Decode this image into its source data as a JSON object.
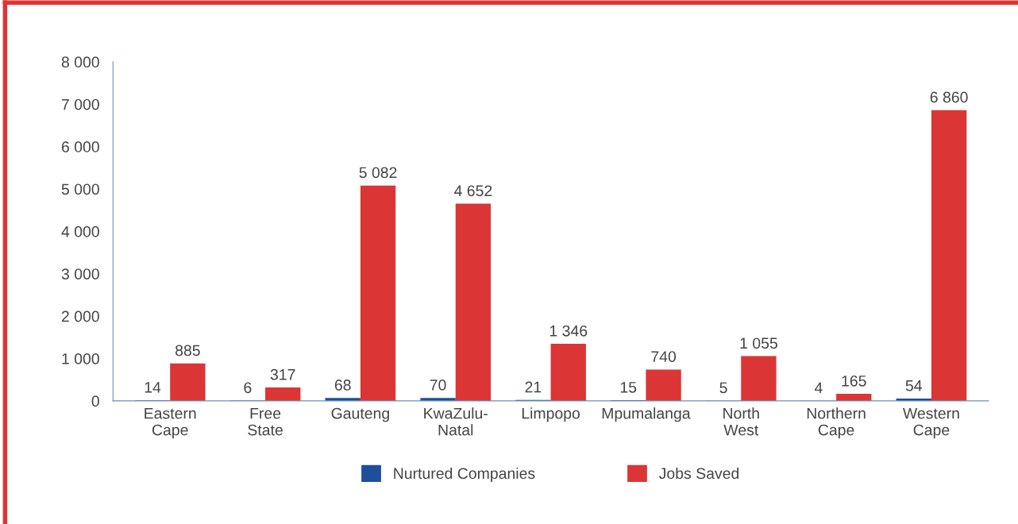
{
  "chart_data": {
    "type": "bar",
    "categories": [
      "Eastern\nCape",
      "Free\nState",
      "Gauteng",
      "KwaZulu-\nNatal",
      "Limpopo",
      "Mpumalanga",
      "North\nWest",
      "Northern\nCape",
      "Western\nCape"
    ],
    "series": [
      {
        "name": "Nurtured Companies",
        "color": "#1f4e9c",
        "values": [
          14,
          6,
          68,
          70,
          21,
          15,
          5,
          4,
          54
        ],
        "value_labels": [
          "14",
          "6",
          "68",
          "70",
          "21",
          "15",
          "5",
          "4",
          "54"
        ]
      },
      {
        "name": "Jobs Saved",
        "color": "#dc3535",
        "values": [
          885,
          317,
          5082,
          4652,
          1346,
          740,
          1055,
          165,
          6860
        ],
        "value_labels": [
          "885",
          "317",
          "5 082",
          "4 652",
          "1 346",
          "740",
          "1 055",
          "165",
          "6 860"
        ]
      }
    ],
    "ylim": [
      0,
      8000
    ],
    "yticks": [
      {
        "value": 0,
        "label": "0"
      },
      {
        "value": 1000,
        "label": "1 000"
      },
      {
        "value": 2000,
        "label": "2 000"
      },
      {
        "value": 3000,
        "label": "3 000"
      },
      {
        "value": 4000,
        "label": "4 000"
      },
      {
        "value": 5000,
        "label": "5 000"
      },
      {
        "value": 6000,
        "label": "6 000"
      },
      {
        "value": 7000,
        "label": "7 000"
      },
      {
        "value": 8000,
        "label": "8 000"
      }
    ],
    "grid": false,
    "legend": "bottom"
  }
}
